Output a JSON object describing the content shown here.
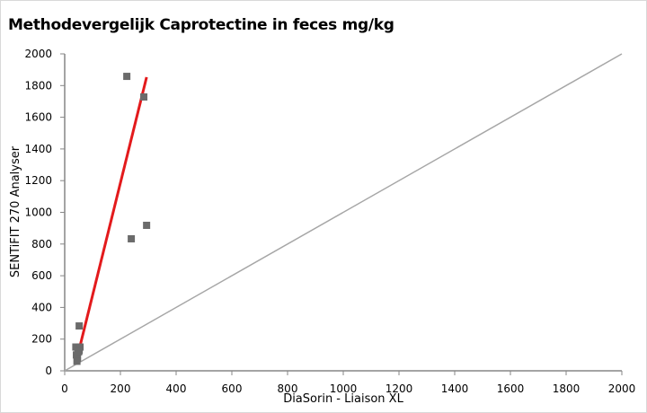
{
  "chart_data": {
    "type": "scatter",
    "title": "Methodevergelijk Caprotectine in feces mg/kg",
    "xlabel": "DiaSorin - Liaison XL",
    "ylabel": "SENTiFIT 270 Analyser",
    "xlim": [
      0,
      2000
    ],
    "ylim": [
      0,
      2000
    ],
    "xticks": [
      0,
      200,
      400,
      600,
      800,
      1000,
      1200,
      1400,
      1600,
      1800,
      2000
    ],
    "yticks": [
      0,
      200,
      400,
      600,
      800,
      1000,
      1200,
      1400,
      1600,
      1800,
      2000
    ],
    "grid": false,
    "points": [
      [
        223,
        1858
      ],
      [
        284,
        1728
      ],
      [
        239,
        833
      ],
      [
        294,
        918
      ],
      [
        52,
        283
      ],
      [
        40,
        150
      ],
      [
        47,
        140
      ],
      [
        52,
        128
      ],
      [
        55,
        150
      ],
      [
        42,
        100
      ],
      [
        46,
        80
      ],
      [
        50,
        120
      ],
      [
        44,
        60
      ]
    ],
    "trendline": {
      "from": [
        40,
        50
      ],
      "to": [
        294,
        1853
      ],
      "color": "#e31a1c"
    },
    "identity_line": {
      "from": [
        0,
        0
      ],
      "to": [
        2000,
        2000
      ],
      "color": "#a6a6a6"
    },
    "marker_color": "#6b6b6b"
  }
}
